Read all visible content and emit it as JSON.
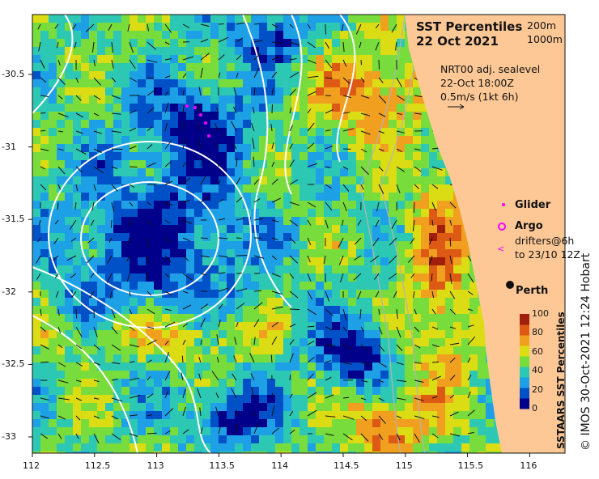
{
  "title": {
    "line1": "SST Percentiles",
    "line2": "22 Oct 2021"
  },
  "depth_contours": {
    "c1": "200m",
    "c2": "1000m"
  },
  "current_info": {
    "line1": "NRT00 adj. sealevel",
    "line2": "22-Oct 18:00Z",
    "line3": "0.5m/s (1kt 6h)"
  },
  "legend": {
    "glider": "Glider",
    "argo": "Argo",
    "drifters_line1": "drifters@6h",
    "drifters_line2": "to 23/10 12Z"
  },
  "place": {
    "perth": "Perth"
  },
  "colorbar": {
    "title": "SSTAARS SST Percentiles",
    "ticks": [
      "0",
      "20",
      "40",
      "60",
      "80",
      "100"
    ],
    "colors": [
      "#00008b",
      "#0050c8",
      "#1ea0e6",
      "#2dc8b4",
      "#78dc3c",
      "#dcdc14",
      "#f0a01e",
      "#dc5a14",
      "#a01e0a"
    ]
  },
  "credit": "© IMOS 30-Oct-2021 12:24 Hobart",
  "x_axis": {
    "ticks": [
      "112",
      "112.5",
      "113",
      "113.5",
      "114",
      "114.5",
      "115",
      "115.5",
      "116"
    ]
  },
  "y_axis": {
    "ticks": [
      "-30.5",
      "-31",
      "-31.5",
      "-32",
      "-32.5",
      "-33"
    ]
  },
  "colors": {
    "land": "#fdc896",
    "contour": "#ffffff",
    "glider": "#ff00ff",
    "argo": "#ff00ff"
  }
}
